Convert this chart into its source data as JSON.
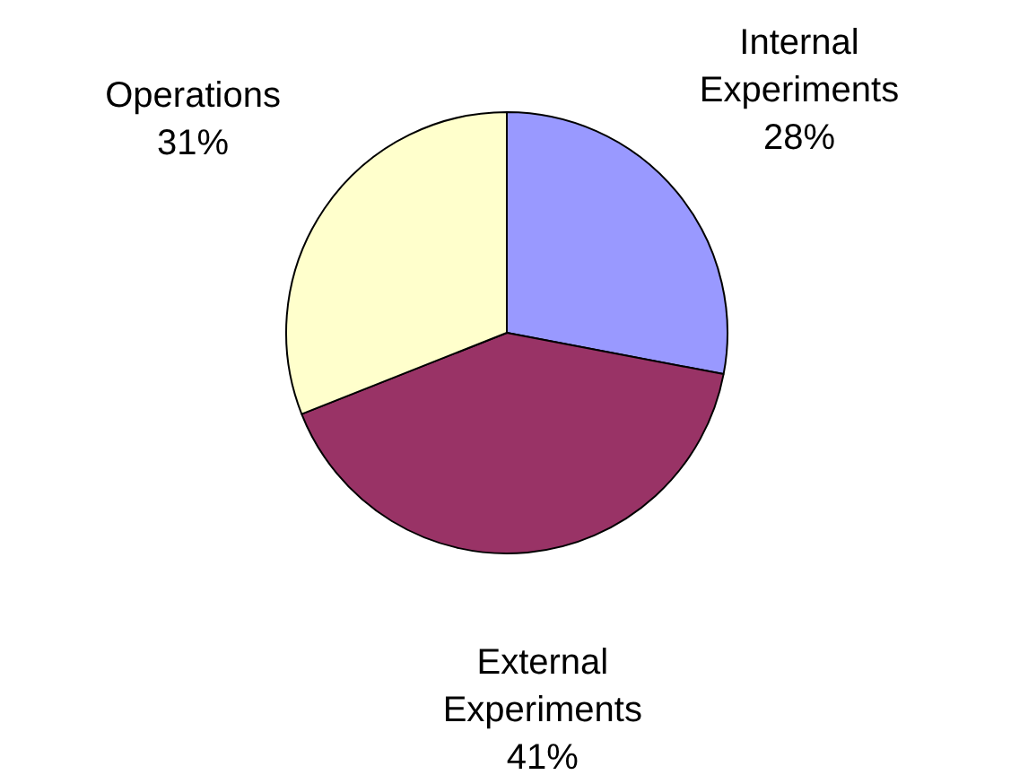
{
  "chart_data": {
    "type": "pie",
    "categories": [
      "Internal Experiments",
      "External Experiments",
      "Operations"
    ],
    "values": [
      28,
      41,
      31
    ],
    "colors": [
      "#9999ff",
      "#993366",
      "#ffffcc"
    ],
    "value_labels": [
      "28%",
      "41%",
      "31%"
    ]
  }
}
